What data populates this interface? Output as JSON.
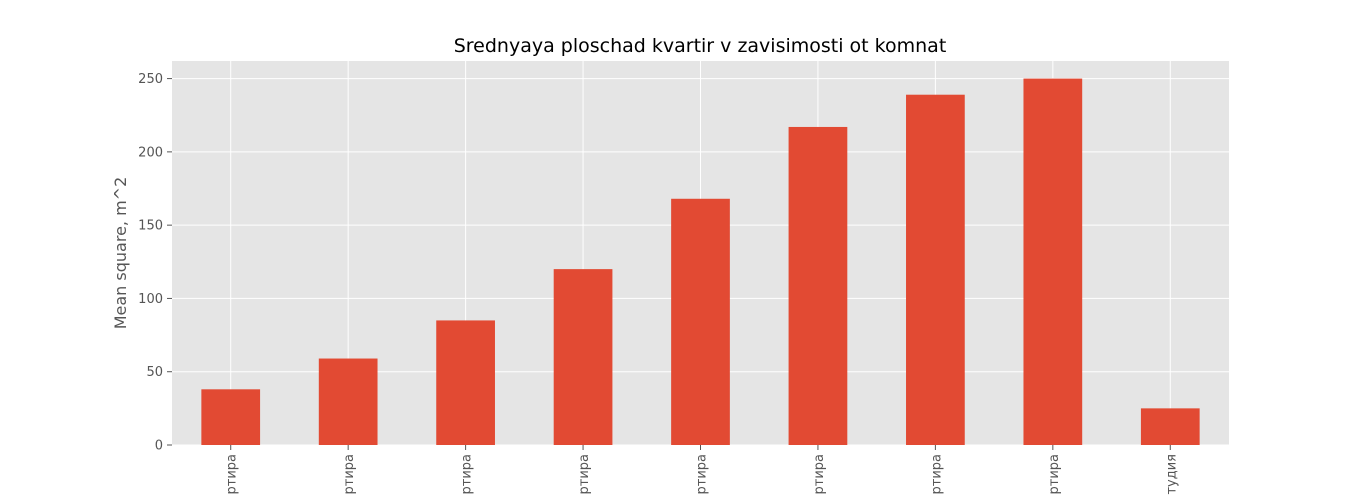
{
  "chart_data": {
    "type": "bar",
    "title": "Srednyaya ploschad kvartir v zavisimosti ot komnat",
    "ylabel": "Mean square, m^2",
    "xlabel": "",
    "categories": [
      "ртира",
      "ртира",
      "ртира",
      "ртира",
      "ртира",
      "ртира",
      "ртира",
      "ртира",
      "тудия"
    ],
    "values": [
      38,
      59,
      85,
      120,
      168,
      217,
      239,
      250,
      25
    ],
    "ylim": [
      0,
      262
    ],
    "yticks": [
      0,
      50,
      100,
      150,
      200,
      250
    ],
    "grid": true,
    "legend": "none",
    "colors": {
      "bar": "#e24a33",
      "plot_background": "#e5e5e5",
      "grid": "#ffffff",
      "tick_text": "#555555",
      "title_text": "#000000"
    }
  }
}
